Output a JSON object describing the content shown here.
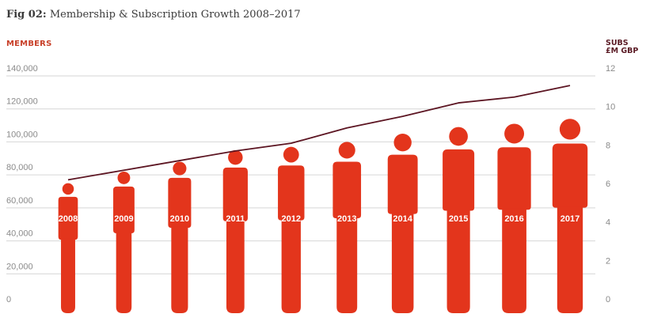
{
  "figure": {
    "label": "Fig 02:",
    "title": "Membership & Subscription Growth 2008–2017"
  },
  "colors": {
    "members": "#e3351c",
    "subs": "#5c1522",
    "grid": "#d6d6d6",
    "tick": "#8a8a8a"
  },
  "chart_data": {
    "type": "bar",
    "title": "Membership & Subscription Growth 2008–2017",
    "categories": [
      "2008",
      "2009",
      "2010",
      "2011",
      "2012",
      "2013",
      "2014",
      "2015",
      "2016",
      "2017"
    ],
    "series": [
      {
        "name": "MEMBERS",
        "type": "bar",
        "axis": "left",
        "values": [
          75000,
          82000,
          88000,
          95000,
          97000,
          100000,
          105000,
          109000,
          111000,
          114000
        ]
      },
      {
        "name": "SUBS £M GBP",
        "type": "line",
        "axis": "right",
        "values": [
          6.6,
          7.1,
          7.6,
          8.1,
          8.5,
          9.3,
          9.9,
          10.6,
          10.9,
          11.5
        ]
      }
    ],
    "ylabel_left": "MEMBERS",
    "ylabel_right_lines": [
      "SUBS",
      "£M GBP"
    ],
    "ylim_left": [
      0,
      140000
    ],
    "ylim_right": [
      0,
      12
    ],
    "yticks_left": [
      "0",
      "20,000",
      "40,000",
      "60,000",
      "80,000",
      "100,000",
      "120,000",
      "140,000"
    ],
    "yticks_right": [
      "0",
      "2",
      "4",
      "6",
      "8",
      "10",
      "12"
    ],
    "grid": true,
    "bar_style": "person-silhouette"
  }
}
